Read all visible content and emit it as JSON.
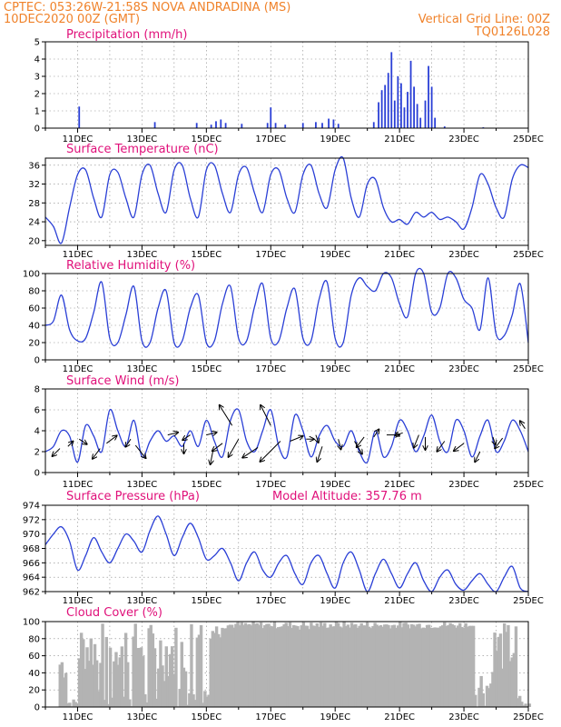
{
  "header": {
    "line1_left": "CPTEC:   053:26W-21:58S   NOVA ANDRADINA (MS)",
    "line2_left": "10DEC2020 00Z (GMT)",
    "line2_right": "Vertical Grid Line: 00Z",
    "line3_right": "TQ0126L028"
  },
  "x_tick_labels": [
    "11DEC",
    "13DEC",
    "15DEC",
    "17DEC",
    "19DEC",
    "21DEC",
    "23DEC",
    "25DEC"
  ],
  "colors": {
    "series": "#2a3fd6",
    "cloud": "#b3b3b3",
    "arrow": "#000000",
    "header": "#f0822a",
    "panel_title": "#e0107a"
  },
  "chart_data": [
    {
      "type": "bar",
      "title": "Precipitation (mm/h)",
      "ylim": [
        0,
        5
      ],
      "yticks": [
        0,
        1,
        2,
        3,
        4,
        5
      ],
      "bars": [
        [
          11.05,
          1.25
        ],
        [
          13.4,
          0.35
        ],
        [
          14.7,
          0.3
        ],
        [
          15.15,
          0.2
        ],
        [
          15.3,
          0.4
        ],
        [
          15.45,
          0.5
        ],
        [
          15.6,
          0.3
        ],
        [
          16.1,
          0.25
        ],
        [
          16.9,
          0.3
        ],
        [
          17.0,
          1.2
        ],
        [
          17.15,
          0.3
        ],
        [
          17.45,
          0.2
        ],
        [
          18.0,
          0.3
        ],
        [
          18.4,
          0.35
        ],
        [
          18.6,
          0.3
        ],
        [
          18.8,
          0.55
        ],
        [
          18.95,
          0.5
        ],
        [
          19.1,
          0.25
        ],
        [
          20.2,
          0.35
        ],
        [
          20.35,
          1.5
        ],
        [
          20.45,
          2.2
        ],
        [
          20.55,
          2.5
        ],
        [
          20.65,
          3.2
        ],
        [
          20.75,
          4.4
        ],
        [
          20.85,
          1.6
        ],
        [
          20.95,
          3.0
        ],
        [
          21.05,
          2.6
        ],
        [
          21.15,
          1.2
        ],
        [
          21.25,
          2.1
        ],
        [
          21.35,
          3.9
        ],
        [
          21.45,
          2.4
        ],
        [
          21.55,
          1.4
        ],
        [
          21.65,
          0.6
        ],
        [
          21.8,
          1.6
        ],
        [
          21.9,
          3.6
        ],
        [
          22.0,
          2.4
        ],
        [
          22.1,
          0.6
        ],
        [
          22.4,
          0.1
        ],
        [
          23.6,
          0.05
        ]
      ]
    },
    {
      "type": "line",
      "title": "Surface Temperature (nC)",
      "ylim": [
        19,
        37.5
      ],
      "yticks": [
        20,
        24,
        28,
        32,
        36
      ],
      "x": [
        10.0,
        10.25,
        10.5,
        10.75,
        11.0,
        11.25,
        11.5,
        11.75,
        12.0,
        12.25,
        12.5,
        12.75,
        13.0,
        13.25,
        13.5,
        13.75,
        14.0,
        14.25,
        14.5,
        14.75,
        15.0,
        15.25,
        15.5,
        15.75,
        16.0,
        16.25,
        16.5,
        16.75,
        17.0,
        17.25,
        17.5,
        17.75,
        18.0,
        18.25,
        18.5,
        18.75,
        19.0,
        19.25,
        19.5,
        19.75,
        20.0,
        20.25,
        20.5,
        20.75,
        21.0,
        21.25,
        21.5,
        21.75,
        22.0,
        22.25,
        22.5,
        22.75,
        23.0,
        23.25,
        23.5,
        23.75,
        24.0,
        24.25,
        24.5,
        24.75,
        25.0
      ],
      "y": [
        25,
        23,
        19.5,
        27,
        34,
        35,
        29,
        25,
        34,
        34.5,
        29,
        25,
        34,
        36,
        30,
        26,
        35,
        36,
        29,
        25,
        35,
        36,
        30,
        26,
        34,
        35.5,
        30,
        26,
        34,
        35,
        29,
        26,
        34,
        36,
        30,
        27,
        35,
        37.5,
        29,
        25,
        32,
        33,
        27,
        24,
        24.5,
        23.5,
        26,
        25,
        26,
        24.5,
        25,
        24,
        22.5,
        27,
        34,
        32,
        27,
        25,
        33,
        36,
        35.5
      ]
    },
    {
      "type": "line",
      "title": "Relative Humidity (%)",
      "ylim": [
        0,
        100
      ],
      "yticks": [
        0,
        20,
        40,
        60,
        80,
        100
      ],
      "x": [
        10.0,
        10.25,
        10.5,
        10.75,
        11.0,
        11.25,
        11.5,
        11.75,
        12.0,
        12.25,
        12.5,
        12.75,
        13.0,
        13.25,
        13.5,
        13.75,
        14.0,
        14.25,
        14.5,
        14.75,
        15.0,
        15.25,
        15.5,
        15.75,
        16.0,
        16.25,
        16.5,
        16.75,
        17.0,
        17.25,
        17.5,
        17.75,
        18.0,
        18.25,
        18.5,
        18.75,
        19.0,
        19.25,
        19.5,
        19.75,
        20.0,
        20.25,
        20.5,
        20.75,
        21.0,
        21.25,
        21.5,
        21.75,
        22.0,
        22.25,
        22.5,
        22.75,
        23.0,
        23.25,
        23.5,
        23.75,
        24.0,
        24.25,
        24.5,
        24.75,
        25.0
      ],
      "y": [
        40,
        45,
        75,
        35,
        22,
        25,
        55,
        90,
        25,
        20,
        52,
        85,
        22,
        20,
        60,
        80,
        20,
        22,
        60,
        75,
        20,
        22,
        65,
        85,
        25,
        22,
        62,
        88,
        25,
        22,
        60,
        82,
        25,
        22,
        70,
        90,
        25,
        20,
        75,
        95,
        85,
        80,
        100,
        95,
        65,
        50,
        100,
        100,
        55,
        60,
        100,
        95,
        70,
        60,
        35,
        95,
        30,
        28,
        52,
        88,
        20
      ]
    },
    {
      "type": "line",
      "title": "Surface Wind (m/s)",
      "ylim": [
        0,
        8
      ],
      "yticks": [
        0,
        2,
        4,
        6,
        8
      ],
      "x": [
        10.0,
        10.25,
        10.5,
        10.75,
        11.0,
        11.25,
        11.5,
        11.75,
        12.0,
        12.25,
        12.5,
        12.75,
        13.0,
        13.25,
        13.5,
        13.75,
        14.0,
        14.25,
        14.5,
        14.75,
        15.0,
        15.25,
        15.5,
        15.75,
        16.0,
        16.25,
        16.5,
        16.75,
        17.0,
        17.25,
        17.5,
        17.75,
        18.0,
        18.25,
        18.5,
        18.75,
        19.0,
        19.25,
        19.5,
        19.75,
        20.0,
        20.25,
        20.5,
        20.75,
        21.0,
        21.25,
        21.5,
        21.75,
        22.0,
        22.25,
        22.5,
        22.75,
        23.0,
        23.25,
        23.5,
        23.75,
        24.0,
        24.25,
        24.5,
        24.75,
        25.0
      ],
      "y": [
        2,
        2.5,
        4,
        3.5,
        1,
        4.5,
        3.5,
        2,
        6,
        4,
        2.5,
        5,
        1.5,
        3,
        4,
        3,
        3.5,
        2.5,
        4,
        2.5,
        5,
        3,
        1.5,
        5,
        6,
        3,
        2,
        4,
        6,
        2.5,
        1.5,
        5.5,
        4,
        1.5,
        3.5,
        4.5,
        3,
        2.5,
        4,
        2,
        1,
        4,
        1.5,
        2.5,
        5,
        4,
        2,
        3.5,
        5.5,
        3,
        2,
        5,
        4,
        1.5,
        3.5,
        5,
        2,
        3,
        5,
        4,
        2
      ],
      "vectors": [
        [
          10.45,
          2.3,
          -0.3,
          -0.3
        ],
        [
          10.7,
          2.5,
          0.2,
          0.2
        ],
        [
          11.05,
          3.2,
          0.3,
          -0.2
        ],
        [
          11.7,
          2.3,
          -0.3,
          -0.4
        ],
        [
          11.9,
          2.8,
          0.4,
          0.3
        ],
        [
          12.8,
          2.6,
          0.4,
          -0.5
        ],
        [
          12.65,
          3.2,
          -0.2,
          -0.3
        ],
        [
          13.8,
          3.6,
          0.4,
          0.1
        ],
        [
          14.3,
          2.8,
          0,
          -0.4
        ],
        [
          14.5,
          3.6,
          -0.3,
          -0.2
        ],
        [
          15.0,
          3.6,
          0.4,
          0.1
        ],
        [
          15.2,
          2.0,
          -0.1,
          -0.5
        ],
        [
          15.5,
          2.8,
          -0.4,
          -0.3
        ],
        [
          15.8,
          4.5,
          -0.5,
          0.8
        ],
        [
          16.0,
          3.2,
          -0.4,
          -0.7
        ],
        [
          16.6,
          2.4,
          -0.6,
          -0.4
        ],
        [
          17.0,
          4.5,
          -0.4,
          0.8
        ],
        [
          17.3,
          3.0,
          -0.8,
          -0.8
        ],
        [
          17.6,
          3.0,
          0.5,
          0.2
        ],
        [
          18.1,
          3.2,
          0.3,
          0
        ],
        [
          18.4,
          3.6,
          0.1,
          -0.3
        ],
        [
          18.6,
          2.5,
          -0.2,
          -0.6
        ],
        [
          19.1,
          3.2,
          0.1,
          -0.4
        ],
        [
          19.6,
          3.0,
          0.3,
          -0.5
        ],
        [
          19.9,
          3.4,
          -0.3,
          -0.4
        ],
        [
          20.2,
          3.4,
          0.2,
          0.3
        ],
        [
          20.6,
          3.6,
          0.5,
          0
        ],
        [
          21.1,
          3.8,
          -0.3,
          -0.1
        ],
        [
          21.6,
          3.6,
          -0.2,
          -0.5
        ],
        [
          21.8,
          3.4,
          0,
          -0.5
        ],
        [
          22.4,
          3.0,
          -0.3,
          -0.4
        ],
        [
          23.0,
          2.8,
          -0.4,
          -0.3
        ],
        [
          23.5,
          2.0,
          -0.2,
          -0.4
        ],
        [
          23.9,
          3.4,
          0.1,
          -0.3
        ],
        [
          24.2,
          3.3,
          -0.3,
          -0.4
        ],
        [
          24.9,
          4.2,
          -0.2,
          0.3
        ]
      ]
    },
    {
      "type": "line",
      "title": "Surface Pressure (hPa)",
      "annotation": "Model Altitude: 357.76 m",
      "ylim": [
        962,
        974
      ],
      "yticks": [
        962,
        964,
        966,
        968,
        970,
        972,
        974
      ],
      "x": [
        10.0,
        10.25,
        10.5,
        10.75,
        11.0,
        11.25,
        11.5,
        11.75,
        12.0,
        12.25,
        12.5,
        12.75,
        13.0,
        13.25,
        13.5,
        13.75,
        14.0,
        14.25,
        14.5,
        14.75,
        15.0,
        15.25,
        15.5,
        15.75,
        16.0,
        16.25,
        16.5,
        16.75,
        17.0,
        17.25,
        17.5,
        17.75,
        18.0,
        18.25,
        18.5,
        18.75,
        19.0,
        19.25,
        19.5,
        19.75,
        20.0,
        20.25,
        20.5,
        20.75,
        21.0,
        21.25,
        21.5,
        21.75,
        22.0,
        22.25,
        22.5,
        22.75,
        23.0,
        23.25,
        23.5,
        23.75,
        24.0,
        24.25,
        24.5,
        24.75,
        25.0
      ],
      "y": [
        968.5,
        970,
        971,
        969,
        965,
        967,
        969.5,
        967.5,
        966,
        968,
        970,
        969,
        967.5,
        970.5,
        972.5,
        970,
        967,
        969.5,
        971.5,
        969.5,
        966.5,
        967,
        968,
        966,
        963.5,
        966,
        967.5,
        965,
        964,
        966,
        967,
        964.5,
        963,
        966,
        967,
        964.5,
        962.5,
        966,
        967.5,
        965,
        962,
        964.5,
        966.5,
        964.5,
        962.5,
        964.5,
        966,
        963.5,
        962,
        964,
        965,
        963,
        962.2,
        963.5,
        964.5,
        963,
        961.5,
        964,
        965.5,
        962.5,
        962
      ]
    },
    {
      "type": "bar",
      "title": "Cloud Cover (%)",
      "ylim": [
        0,
        100
      ],
      "yticks": [
        0,
        20,
        40,
        60,
        80,
        100
      ]
    }
  ]
}
